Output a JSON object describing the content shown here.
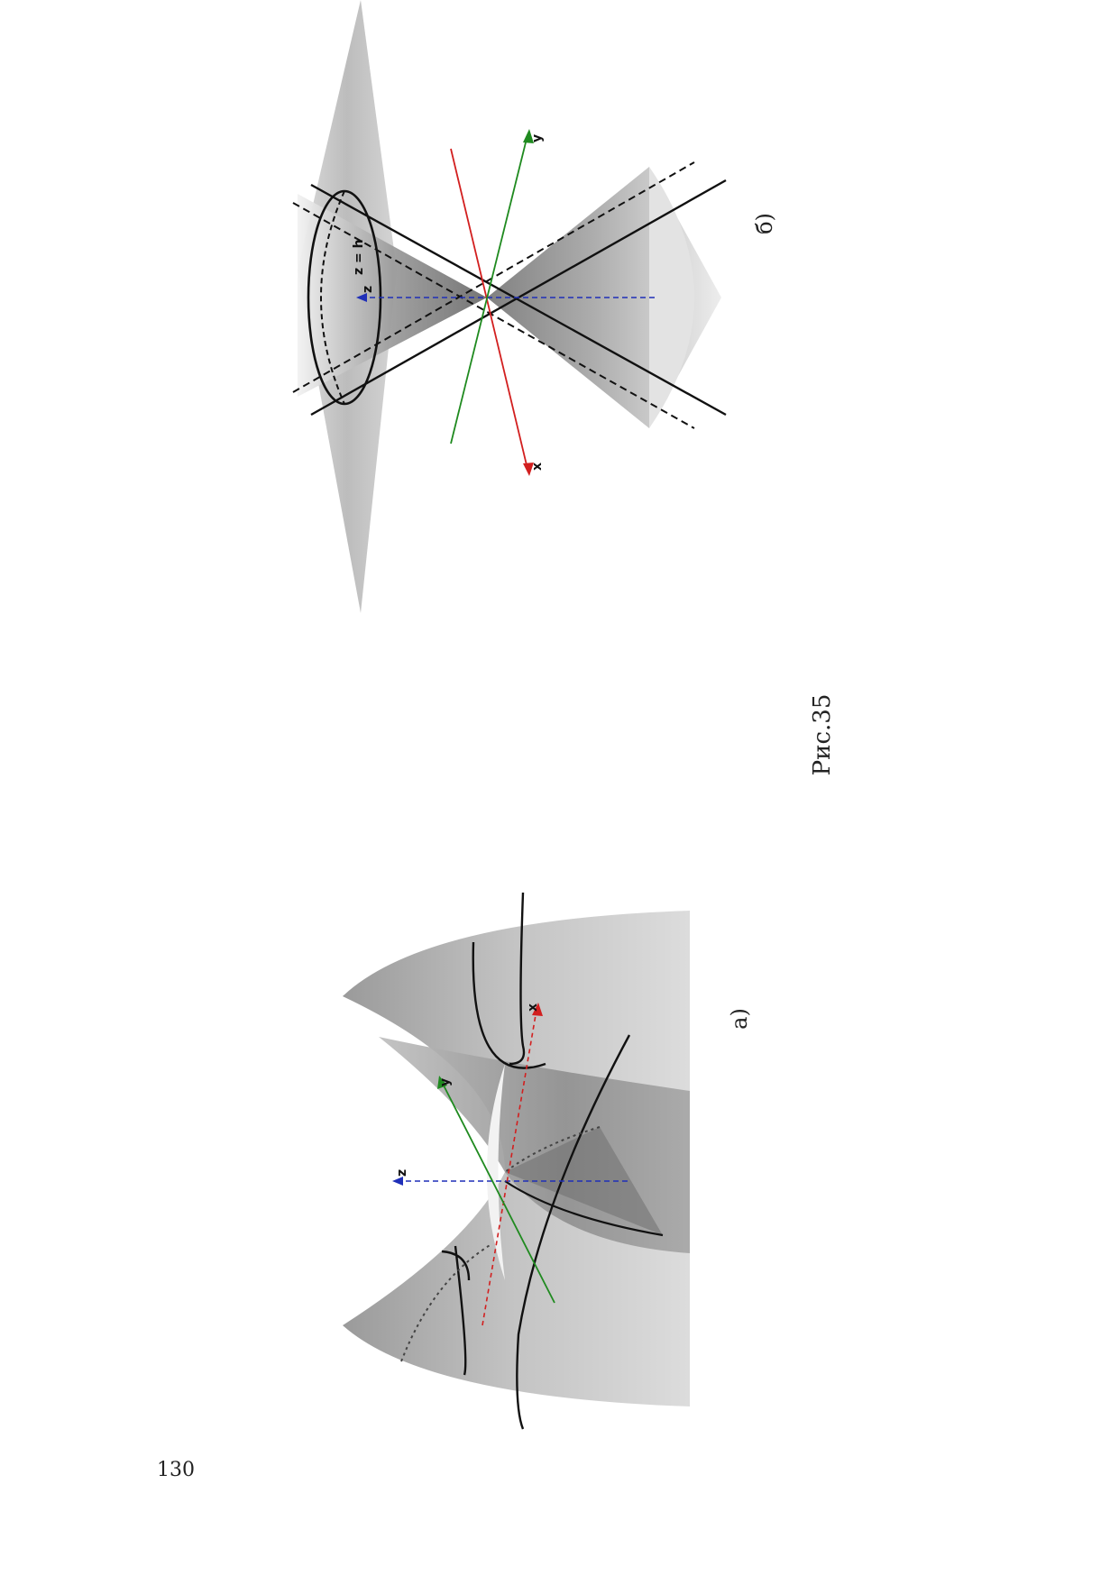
{
  "page": {
    "number": "130"
  },
  "figure": {
    "caption": "Рис.35",
    "panels": [
      {
        "label": "a)",
        "surface": "hyperbolic-paraboloid",
        "axes": {
          "x": "x",
          "y": "y",
          "z": "z"
        }
      },
      {
        "label": "б)",
        "surface": "elliptic-cone",
        "section_label": "z = h",
        "axes": {
          "x": "x",
          "y": "y",
          "z": "z"
        }
      }
    ]
  },
  "colors": {
    "x_axis": "#d21f1f",
    "y_axis": "#1f8a1f",
    "z_axis": "#1f2fb8",
    "curve": "#111111",
    "surface_dark": "#8c8c8c",
    "surface_light": "#e6e6e6"
  }
}
